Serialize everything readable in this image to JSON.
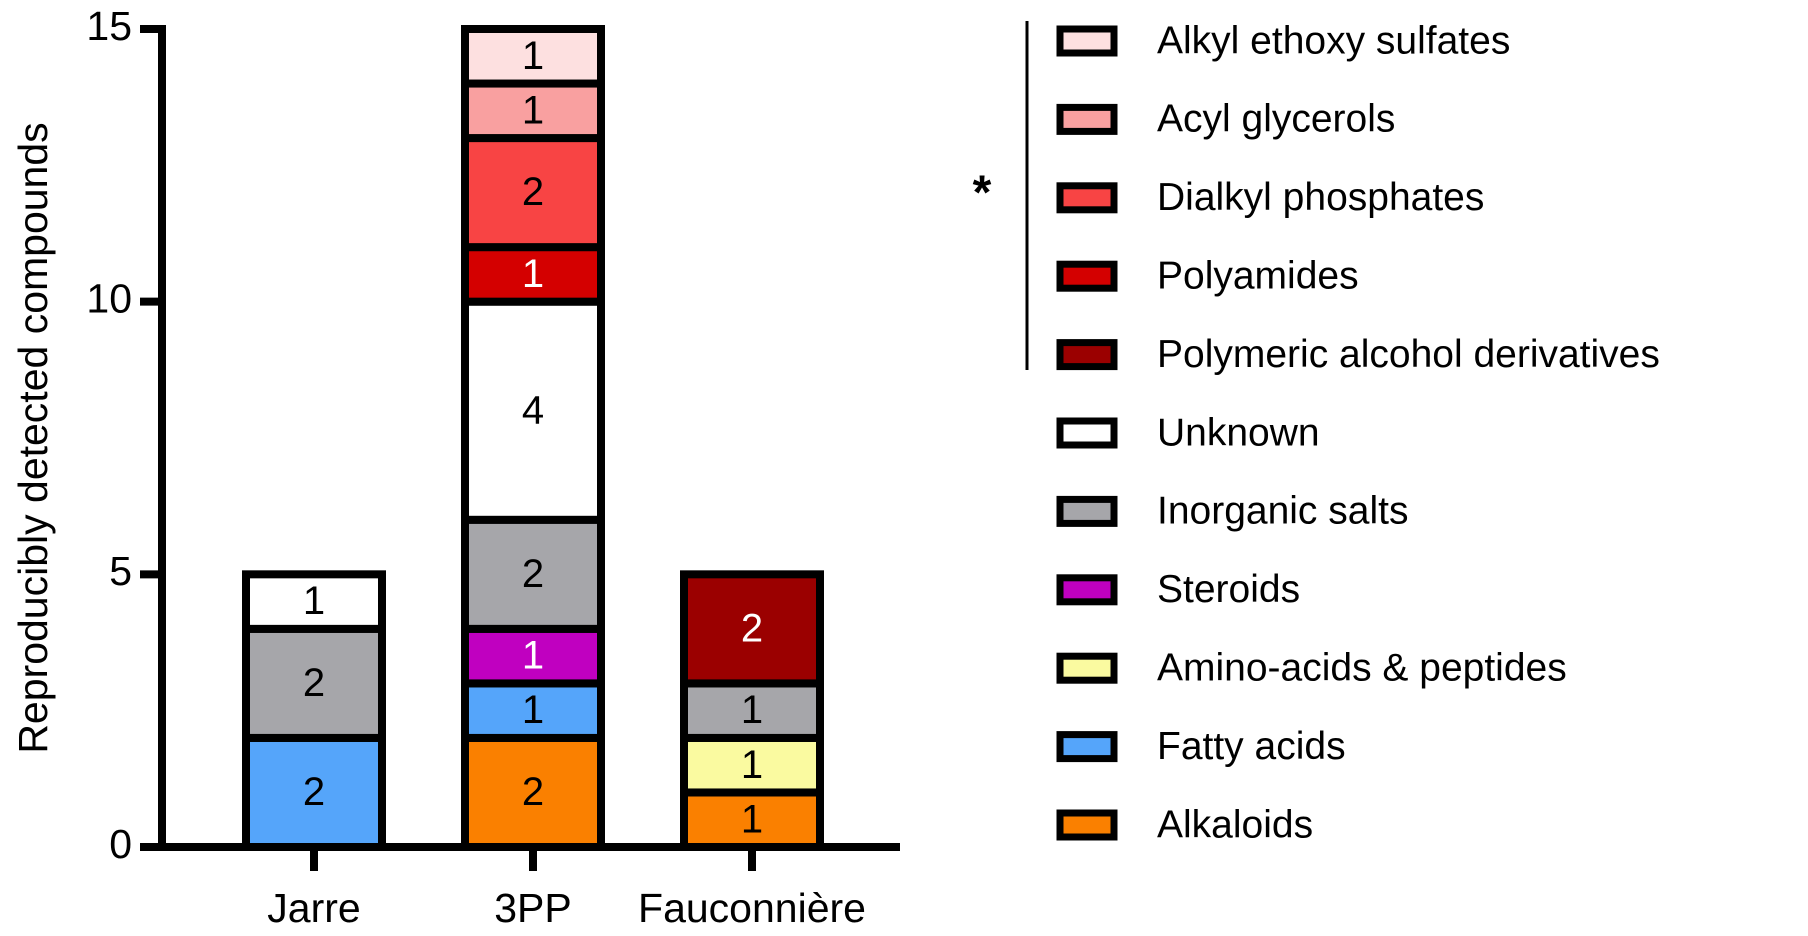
{
  "chart_data": {
    "type": "stacked_bar",
    "y_label": "Reproducibly detected compounds",
    "categories": [
      "Jarre",
      "3PP",
      "Fauconnière"
    ],
    "ylim": [
      0,
      15
    ],
    "yticks": [
      0,
      5,
      10,
      15
    ],
    "annotation": "*",
    "series": [
      {
        "name": "Alkaloids",
        "color": "#fa8000",
        "values": [
          null,
          2,
          1
        ]
      },
      {
        "name": "Fatty acids",
        "color": "#55a5fa",
        "values": [
          2,
          1,
          null
        ]
      },
      {
        "name": "Amino-acids & peptides",
        "color": "#fafaa0",
        "values": [
          null,
          null,
          1
        ]
      },
      {
        "name": "Steroids",
        "color": "#c000c0",
        "values": [
          null,
          1,
          null
        ]
      },
      {
        "name": "Inorganic salts",
        "color": "#a6a6aa",
        "values": [
          2,
          2,
          1
        ]
      },
      {
        "name": "Unknown",
        "color": "#ffffff",
        "values": [
          1,
          4,
          null
        ]
      },
      {
        "name": "Polymeric alcohol derivatives",
        "color": "#9b0000",
        "values": [
          null,
          null,
          2
        ]
      },
      {
        "name": "Polyamides",
        "color": "#d40000",
        "values": [
          null,
          1,
          null
        ]
      },
      {
        "name": "Dialkyl phosphates",
        "color": "#f84444",
        "values": [
          null,
          2,
          null
        ]
      },
      {
        "name": "Acyl glycerols",
        "color": "#f9a0a0",
        "values": [
          null,
          1,
          null
        ]
      },
      {
        "name": "Alkyl ethoxy sulfates",
        "color": "#fde0e0",
        "values": [
          null,
          1,
          null
        ]
      }
    ]
  }
}
